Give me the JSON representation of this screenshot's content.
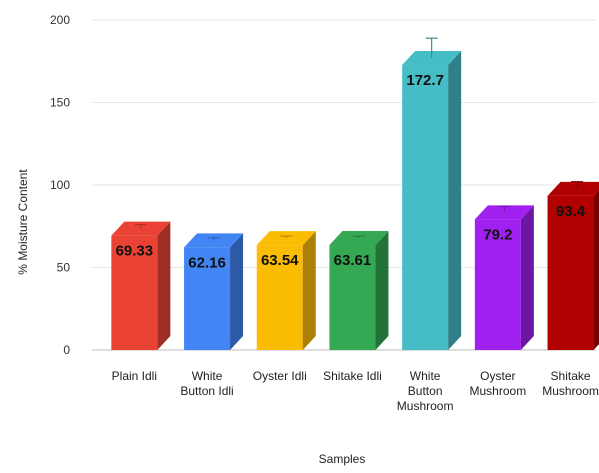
{
  "chart_data": {
    "type": "bar",
    "style": "3d",
    "categories": [
      [
        "Plain Idli"
      ],
      [
        "White",
        "Button Idli"
      ],
      [
        "Oyster Idli"
      ],
      [
        "Shitake Idli"
      ],
      [
        "White",
        "Button",
        "Mushroom"
      ],
      [
        "Oyster",
        "Mushroom"
      ],
      [
        "Shitake",
        "Mushroom"
      ]
    ],
    "values": [
      69.33,
      62.16,
      63.54,
      63.61,
      172.7,
      79.2,
      93.4
    ],
    "data_labels": [
      "69.33",
      "62.16",
      "63.54",
      "63.61",
      "172.7",
      "79.2",
      "93.4"
    ],
    "error_top": [
      76,
      68,
      69,
      69,
      189,
      87,
      102
    ],
    "colors": [
      "#ea4335",
      "#4285f4",
      "#fbbc04",
      "#34a853",
      "#46bdc6",
      "#a020f0",
      "#b00000"
    ],
    "xlabel": "Samples",
    "ylabel": "% Moisture Content",
    "yticks": [
      0,
      50,
      100,
      150,
      200
    ],
    "ylim": [
      0,
      200
    ],
    "grid": true,
    "legend": "none"
  }
}
